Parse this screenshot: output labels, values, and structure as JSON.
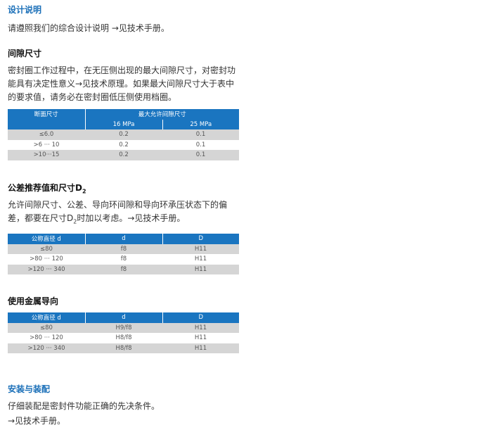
{
  "design": {
    "heading": "设计说明",
    "text": "请遵照我们的综合设计说明 →见技术手册。"
  },
  "gap": {
    "heading": "间隙尺寸",
    "text": "密封圈工作过程中，在无压侧出现的最大间隙尺寸，对密封功能具有决定性意义→见技术原理。如果最大间隙尺寸大于表中的要求值，请务必在密封圈低压侧使用档圈。",
    "table": {
      "col1": "断面尺寸",
      "group": "最大允许间隙尺寸",
      "sub": [
        "16 MPa",
        "25 MPa"
      ],
      "rows": [
        [
          "≤6.0",
          "0.2",
          "0.1"
        ],
        [
          ">6 ··· 10",
          "0.2",
          "0.1"
        ],
        [
          ">10···15",
          "0.2",
          "0.1"
        ]
      ]
    }
  },
  "tol": {
    "heading": "公差推荐值和尺寸D",
    "heading_sub": "2",
    "text1": "允许间隙尺寸、公差、导向环间隙和导向环承压状态下的偏差，都要在尺寸D",
    "text_sub": "2",
    "text2": "时加以考虑。→见技术手册。",
    "table": {
      "headers": [
        "公称直径 d",
        "d",
        "D"
      ],
      "rows": [
        [
          "≤80",
          "f8",
          "H11"
        ],
        [
          ">80 ··· 120",
          "f8",
          "H11"
        ],
        [
          ">120 ··· 340",
          "f8",
          "H11"
        ]
      ]
    }
  },
  "metal": {
    "heading": "使用金属导向",
    "table": {
      "headers": [
        "公称直径 d",
        "d",
        "D"
      ],
      "rows": [
        [
          "≤80",
          "H9/f8",
          "H11"
        ],
        [
          ">80 ··· 120",
          "H8/f8",
          "H11"
        ],
        [
          ">120 ··· 340",
          "H8/f8",
          "H11"
        ]
      ]
    }
  },
  "install": {
    "heading": "安装与装配",
    "line1": "仔细装配是密封件功能正确的先决条件。",
    "line2": "→见技术手册。"
  }
}
